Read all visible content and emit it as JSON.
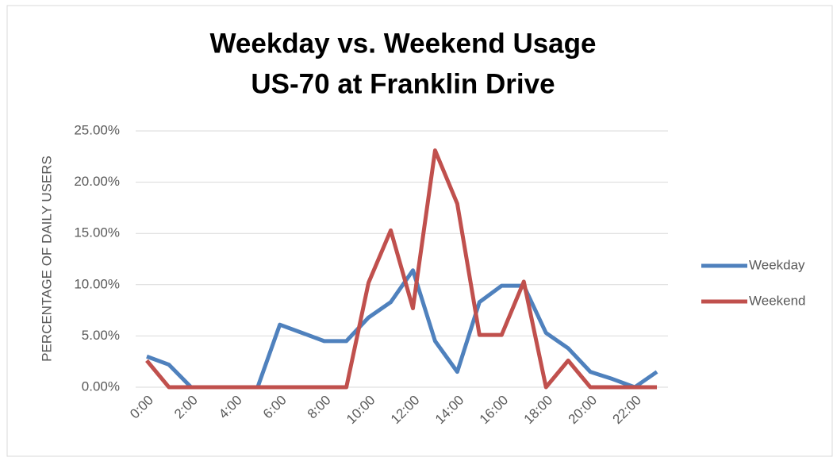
{
  "chart_data": {
    "type": "line",
    "title": [
      "Weekday vs. Weekend Usage",
      "US-70  at Franklin Drive"
    ],
    "y_label": "PERCENTAGE OF DAILY USERS",
    "categories": [
      "0:00",
      null,
      "2:00",
      null,
      "4:00",
      null,
      "6:00",
      null,
      "8:00",
      null,
      "10:00",
      null,
      "12:00",
      null,
      "14:00",
      null,
      "16:00",
      null,
      "18:00",
      null,
      "20:00",
      null,
      "22:00",
      null
    ],
    "series": [
      {
        "name": "Weekday",
        "color": "#4f81bd",
        "values": [
          3.0,
          2.2,
          0,
          0,
          0,
          0,
          6.1,
          5.3,
          4.5,
          4.5,
          6.8,
          8.3,
          11.4,
          4.5,
          1.5,
          8.3,
          9.9,
          9.9,
          5.3,
          3.8,
          1.5,
          0.8,
          0,
          1.5
        ]
      },
      {
        "name": "Weekend",
        "color": "#c0504d",
        "values": [
          2.6,
          0,
          0,
          0,
          0,
          0,
          0,
          0,
          0,
          0,
          10.2,
          15.3,
          7.7,
          23.1,
          17.9,
          5.1,
          5.1,
          10.3,
          0,
          2.6,
          0,
          0,
          0,
          0
        ]
      }
    ],
    "ylim": [
      0,
      25
    ],
    "yticks": [
      {
        "value": 0,
        "label": "0.00%"
      },
      {
        "value": 5,
        "label": "5.00%"
      },
      {
        "value": 10,
        "label": "10.00%"
      },
      {
        "value": 15,
        "label": "15.00%"
      },
      {
        "value": 20,
        "label": "20.00%"
      },
      {
        "value": 25,
        "label": "25.00%"
      }
    ],
    "grid": true,
    "legend": "right"
  }
}
